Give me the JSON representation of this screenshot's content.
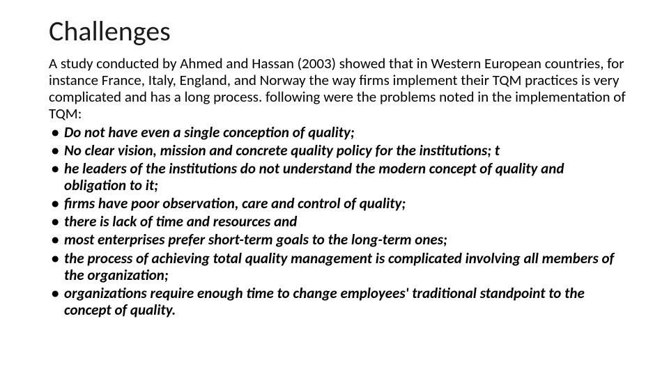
{
  "slide": {
    "title": "Challenges",
    "intro": "A study conducted by Ahmed and Hassan (2003) showed that in Western European countries, for instance France, Italy, England, and Norway the way firms implement their TQM practices is very complicated and has a long process. following were the problems noted in the implementation of TQM:",
    "bullets": [
      "Do not have even a single conception of quality;",
      "No clear vision, mission and concrete quality policy for the institutions; t",
      "he leaders of the institutions do not understand the modern concept of quality and obligation to it;",
      "firms have poor observation, care and control of quality;",
      "there is lack of time and resources and",
      "most enterprises prefer short-term goals to the long-term ones;",
      "the process of achieving total quality management is complicated involving all members of the organization;",
      "organizations require enough time to change employees' traditional standpoint to the concept of quality."
    ]
  },
  "style": {
    "background_color": "#ffffff",
    "text_color": "#000000",
    "title_fontsize": 40,
    "title_weight": 400,
    "body_fontsize": 21,
    "body_line_height": 1.15,
    "bullet_font_style": "italic",
    "bullet_font_weight": 700,
    "font_family": "Calibri"
  }
}
